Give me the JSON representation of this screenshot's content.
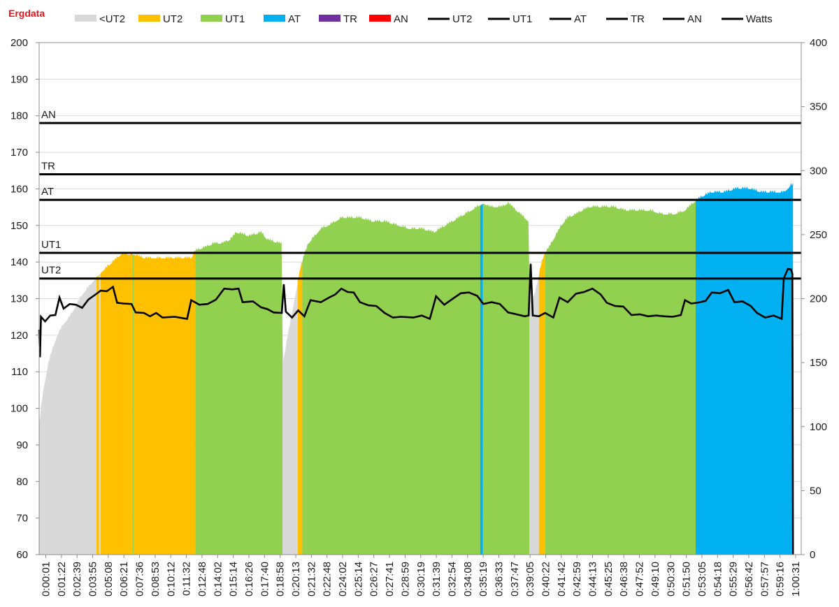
{
  "chart_data": {
    "type": "area",
    "title": "Ergdata",
    "colors": {
      "title": "#e8141c",
      "below_ut2": "#d9d9d9",
      "ut2": "#ffc000",
      "ut1": "#92d050",
      "at": "#00b0f0",
      "tr": "#7030a0",
      "an": "#ff0000",
      "lines": "#000000",
      "grid": "#d9d9d9"
    },
    "legend": {
      "placement": "top",
      "entries": [
        {
          "label": "<UT2",
          "kind": "fill",
          "color": "#d9d9d9"
        },
        {
          "label": "UT2",
          "kind": "fill",
          "color": "#ffc000"
        },
        {
          "label": "UT1",
          "kind": "fill",
          "color": "#92d050"
        },
        {
          "label": "AT",
          "kind": "fill",
          "color": "#00b0f0"
        },
        {
          "label": "TR",
          "kind": "fill",
          "color": "#7030a0"
        },
        {
          "label": "AN",
          "kind": "fill",
          "color": "#ff0000"
        },
        {
          "label": "UT2",
          "kind": "line",
          "color": "#000000"
        },
        {
          "label": "UT1",
          "kind": "line",
          "color": "#000000"
        },
        {
          "label": "AT",
          "kind": "line",
          "color": "#000000"
        },
        {
          "label": "TR",
          "kind": "line",
          "color": "#000000"
        },
        {
          "label": "AN",
          "kind": "line",
          "color": "#000000"
        },
        {
          "label": "Watts",
          "kind": "line",
          "color": "#000000"
        }
      ]
    },
    "x_domain": [
      "0:00:01",
      "1:01:45"
    ],
    "x_ticks": [
      "0:00:01",
      "0:01:22",
      "0:02:39",
      "0:03:55",
      "0:05:08",
      "0:06:21",
      "0:07:36",
      "0:08:53",
      "0:10:12",
      "0:11:32",
      "0:12:48",
      "0:14:02",
      "0:15:14",
      "0:16:26",
      "0:17:40",
      "0:18:58",
      "0:20:13",
      "0:21:32",
      "0:22:48",
      "0:24:02",
      "0:25:14",
      "0:26:27",
      "0:27:41",
      "0:28:59",
      "0:30:19",
      "0:31:39",
      "0:32:54",
      "0:34:08",
      "0:35:19",
      "0:36:33",
      "0:37:47",
      "0:39:05",
      "0:40:22",
      "0:41:42",
      "0:42:59",
      "0:44:13",
      "0:45:25",
      "0:46:38",
      "0:47:52",
      "0:49:10",
      "0:50:30",
      "0:51:50",
      "0:53:05",
      "0:54:18",
      "0:55:29",
      "0:56:42",
      "0:57:57",
      "0:59:16",
      "1:00:31"
    ],
    "y_left": {
      "min": 60,
      "max": 200,
      "step": 10,
      "ticks": [
        "60",
        "70",
        "80",
        "90",
        "100",
        "110",
        "120",
        "130",
        "140",
        "150",
        "160",
        "170",
        "180",
        "190",
        "200"
      ]
    },
    "y_right": {
      "min": 0,
      "max": 400,
      "step": 50,
      "ticks": [
        "0",
        "50",
        "100",
        "150",
        "200",
        "250",
        "300",
        "350",
        "400"
      ]
    },
    "grid": {
      "horizontal": true,
      "vertical": false
    },
    "reference_lines": [
      {
        "label": "UT2",
        "value": 135.5
      },
      {
        "label": "UT1",
        "value": 142.5
      },
      {
        "label": "AT",
        "value": 157
      },
      {
        "label": "TR",
        "value": 164
      },
      {
        "label": "AN",
        "value": 178
      }
    ],
    "heart_rate_series": {
      "name": "Heart rate (zone fill)",
      "axis": "left",
      "points": [
        [
          "0:00:01",
          95
        ],
        [
          "0:00:10",
          100
        ],
        [
          "0:00:25",
          106
        ],
        [
          "0:00:45",
          112
        ],
        [
          "0:01:05",
          116
        ],
        [
          "0:01:30",
          120
        ],
        [
          "0:02:00",
          123
        ],
        [
          "0:02:30",
          125
        ],
        [
          "0:03:00",
          128
        ],
        [
          "0:03:30",
          131
        ],
        [
          "0:04:00",
          133
        ],
        [
          "0:04:30",
          135
        ],
        [
          "0:04:45",
          136
        ],
        [
          "0:05:00",
          137
        ],
        [
          "0:05:20",
          138
        ],
        [
          "0:05:40",
          139
        ],
        [
          "0:06:00",
          140
        ],
        [
          "0:06:20",
          141
        ],
        [
          "0:06:40",
          142
        ],
        [
          "0:07:40",
          142
        ],
        [
          "0:08:30",
          141
        ],
        [
          "0:09:30",
          141
        ],
        [
          "0:10:30",
          141
        ],
        [
          "0:11:30",
          141
        ],
        [
          "0:12:20",
          141
        ],
        [
          "0:12:40",
          143
        ],
        [
          "0:13:30",
          144
        ],
        [
          "0:14:10",
          145
        ],
        [
          "0:14:50",
          145
        ],
        [
          "0:15:30",
          146
        ],
        [
          "0:16:00",
          148
        ],
        [
          "0:17:00",
          147
        ],
        [
          "0:18:00",
          148
        ],
        [
          "0:18:30",
          146
        ],
        [
          "0:19:30",
          145
        ],
        [
          "0:19:40",
          145
        ],
        [
          "0:19:45",
          112
        ],
        [
          "0:20:10",
          120
        ],
        [
          "0:20:30",
          126
        ],
        [
          "0:20:50",
          132
        ],
        [
          "0:21:10",
          138
        ],
        [
          "0:21:30",
          142
        ],
        [
          "0:21:50",
          145
        ],
        [
          "0:22:20",
          147
        ],
        [
          "0:22:50",
          149
        ],
        [
          "0:23:30",
          150
        ],
        [
          "0:24:00",
          151
        ],
        [
          "0:24:30",
          152
        ],
        [
          "0:25:00",
          152
        ],
        [
          "0:26:00",
          152
        ],
        [
          "0:27:00",
          151
        ],
        [
          "0:28:00",
          151
        ],
        [
          "0:29:00",
          150
        ],
        [
          "0:30:00",
          149
        ],
        [
          "0:31:00",
          149
        ],
        [
          "0:32:00",
          148
        ],
        [
          "0:33:00",
          150
        ],
        [
          "0:34:00",
          152
        ],
        [
          "0:35:00",
          154
        ],
        [
          "0:35:30",
          155
        ],
        [
          "0:36:00",
          156
        ],
        [
          "0:36:30",
          155
        ],
        [
          "0:37:30",
          155
        ],
        [
          "0:38:00",
          156
        ],
        [
          "0:38:40",
          154
        ],
        [
          "0:39:20",
          152
        ],
        [
          "0:39:40",
          151
        ],
        [
          "0:39:45",
          129
        ],
        [
          "0:40:10",
          131
        ],
        [
          "0:40:25",
          135
        ],
        [
          "0:40:40",
          139
        ],
        [
          "0:40:55",
          142
        ],
        [
          "0:41:20",
          144
        ],
        [
          "0:41:50",
          147
        ],
        [
          "0:42:20",
          150
        ],
        [
          "0:42:50",
          152
        ],
        [
          "0:43:30",
          153
        ],
        [
          "0:44:00",
          154
        ],
        [
          "0:44:40",
          155
        ],
        [
          "0:45:30",
          155
        ],
        [
          "0:46:30",
          155
        ],
        [
          "0:47:30",
          154
        ],
        [
          "0:48:30",
          154
        ],
        [
          "0:49:30",
          154
        ],
        [
          "0:50:30",
          153
        ],
        [
          "0:51:30",
          153
        ],
        [
          "0:52:20",
          154
        ],
        [
          "0:52:40",
          155
        ],
        [
          "0:53:00",
          156
        ],
        [
          "0:53:20",
          157
        ],
        [
          "0:53:50",
          158
        ],
        [
          "0:54:30",
          159
        ],
        [
          "0:55:30",
          159
        ],
        [
          "0:56:30",
          160
        ],
        [
          "0:57:30",
          160
        ],
        [
          "0:58:30",
          159
        ],
        [
          "0:59:30",
          159
        ],
        [
          "1:00:20",
          159
        ],
        [
          "1:00:40",
          160
        ],
        [
          "1:00:55",
          161
        ],
        [
          "1:01:05",
          161
        ]
      ]
    },
    "zone_segments": [
      {
        "zone": "below_ut2",
        "start": "0:00:01",
        "end": "0:04:40"
      },
      {
        "zone": "ut2",
        "start": "0:04:40",
        "end": "0:04:52"
      },
      {
        "zone": "below_ut2",
        "start": "0:04:52",
        "end": "0:05:00"
      },
      {
        "zone": "ut2",
        "start": "0:05:00",
        "end": "0:07:35"
      },
      {
        "zone": "ut1",
        "start": "0:07:35",
        "end": "0:07:42"
      },
      {
        "zone": "ut2",
        "start": "0:07:42",
        "end": "0:12:40"
      },
      {
        "zone": "ut1",
        "start": "0:12:40",
        "end": "0:19:44"
      },
      {
        "zone": "below_ut2",
        "start": "0:19:44",
        "end": "0:20:58"
      },
      {
        "zone": "ut2",
        "start": "0:20:58",
        "end": "0:21:20"
      },
      {
        "zone": "ut1",
        "start": "0:21:20",
        "end": "0:35:45"
      },
      {
        "zone": "at",
        "start": "0:35:45",
        "end": "0:35:58"
      },
      {
        "zone": "ut1",
        "start": "0:35:58",
        "end": "0:39:44"
      },
      {
        "zone": "below_ut2",
        "start": "0:39:44",
        "end": "0:40:30"
      },
      {
        "zone": "ut2",
        "start": "0:40:30",
        "end": "0:41:00"
      },
      {
        "zone": "ut1",
        "start": "0:41:00",
        "end": "0:53:12"
      },
      {
        "zone": "at",
        "start": "0:53:12",
        "end": "1:01:05"
      }
    ],
    "watts_series": {
      "name": "Watts",
      "axis": "right",
      "points": [
        [
          "0:00:01",
          175
        ],
        [
          "0:00:05",
          155
        ],
        [
          "0:00:10",
          185
        ],
        [
          "0:00:30",
          183
        ],
        [
          "0:00:55",
          186
        ],
        [
          "0:01:20",
          188
        ],
        [
          "0:01:40",
          200
        ],
        [
          "0:02:00",
          193
        ],
        [
          "0:02:30",
          195
        ],
        [
          "0:03:00",
          196
        ],
        [
          "0:03:30",
          192
        ],
        [
          "0:04:00",
          200
        ],
        [
          "0:04:40",
          203
        ],
        [
          "0:05:00",
          207
        ],
        [
          "0:05:30",
          205
        ],
        [
          "0:06:00",
          210
        ],
        [
          "0:06:20",
          196
        ],
        [
          "0:06:50",
          197
        ],
        [
          "0:07:30",
          195
        ],
        [
          "0:07:50",
          190
        ],
        [
          "0:08:30",
          188
        ],
        [
          "0:09:00",
          187
        ],
        [
          "0:09:30",
          188
        ],
        [
          "0:10:00",
          186
        ],
        [
          "0:11:00",
          185
        ],
        [
          "0:12:00",
          185
        ],
        [
          "0:12:20",
          198
        ],
        [
          "0:13:00",
          196
        ],
        [
          "0:13:40",
          195
        ],
        [
          "0:14:20",
          200
        ],
        [
          "0:15:00",
          207
        ],
        [
          "0:15:40",
          208
        ],
        [
          "0:16:10",
          207
        ],
        [
          "0:16:30",
          198
        ],
        [
          "0:17:20",
          197
        ],
        [
          "0:18:00",
          194
        ],
        [
          "0:18:30",
          191
        ],
        [
          "0:19:00",
          190
        ],
        [
          "0:19:40",
          188
        ],
        [
          "0:19:50",
          212
        ],
        [
          "0:20:00",
          189
        ],
        [
          "0:20:30",
          186
        ],
        [
          "0:21:00",
          190
        ],
        [
          "0:21:30",
          187
        ],
        [
          "0:22:00",
          198
        ],
        [
          "0:22:50",
          198
        ],
        [
          "0:23:30",
          200
        ],
        [
          "0:24:00",
          204
        ],
        [
          "0:24:30",
          207
        ],
        [
          "0:25:00",
          206
        ],
        [
          "0:25:30",
          204
        ],
        [
          "0:26:00",
          198
        ],
        [
          "0:26:40",
          194
        ],
        [
          "0:27:20",
          195
        ],
        [
          "0:28:00",
          188
        ],
        [
          "0:28:40",
          186
        ],
        [
          "0:29:20",
          185
        ],
        [
          "0:30:20",
          186
        ],
        [
          "0:31:00",
          186
        ],
        [
          "0:31:40",
          185
        ],
        [
          "0:32:10",
          201
        ],
        [
          "0:32:50",
          196
        ],
        [
          "0:33:30",
          199
        ],
        [
          "0:34:10",
          205
        ],
        [
          "0:34:50",
          204
        ],
        [
          "0:35:30",
          203
        ],
        [
          "0:36:00",
          195
        ],
        [
          "0:36:40",
          198
        ],
        [
          "0:37:20",
          195
        ],
        [
          "0:38:00",
          190
        ],
        [
          "0:38:40",
          187
        ],
        [
          "0:39:20",
          187
        ],
        [
          "0:39:40",
          186
        ],
        [
          "0:39:50",
          228
        ],
        [
          "0:40:00",
          186
        ],
        [
          "0:40:30",
          187
        ],
        [
          "0:41:00",
          188
        ],
        [
          "0:41:40",
          186
        ],
        [
          "0:42:10",
          200
        ],
        [
          "0:42:50",
          198
        ],
        [
          "0:43:30",
          203
        ],
        [
          "0:44:10",
          206
        ],
        [
          "0:44:50",
          207
        ],
        [
          "0:45:30",
          204
        ],
        [
          "0:46:00",
          196
        ],
        [
          "0:46:40",
          195
        ],
        [
          "0:47:20",
          193
        ],
        [
          "0:48:00",
          188
        ],
        [
          "0:48:40",
          187
        ],
        [
          "0:49:20",
          187
        ],
        [
          "0:50:00",
          186
        ],
        [
          "0:50:40",
          187
        ],
        [
          "0:51:20",
          185
        ],
        [
          "0:52:00",
          188
        ],
        [
          "0:52:20",
          198
        ],
        [
          "0:52:50",
          197
        ],
        [
          "0:53:20",
          196
        ],
        [
          "0:54:00",
          199
        ],
        [
          "0:54:30",
          204
        ],
        [
          "0:55:10",
          205
        ],
        [
          "0:55:50",
          206
        ],
        [
          "0:56:20",
          198
        ],
        [
          "0:57:00",
          197
        ],
        [
          "0:57:40",
          195
        ],
        [
          "0:58:10",
          188
        ],
        [
          "0:58:50",
          186
        ],
        [
          "0:59:30",
          186
        ],
        [
          "1:00:10",
          185
        ],
        [
          "1:00:20",
          215
        ],
        [
          "1:00:40",
          224
        ],
        [
          "1:00:55",
          222
        ],
        [
          "1:01:02",
          220
        ],
        [
          "1:01:05",
          0
        ]
      ]
    }
  }
}
